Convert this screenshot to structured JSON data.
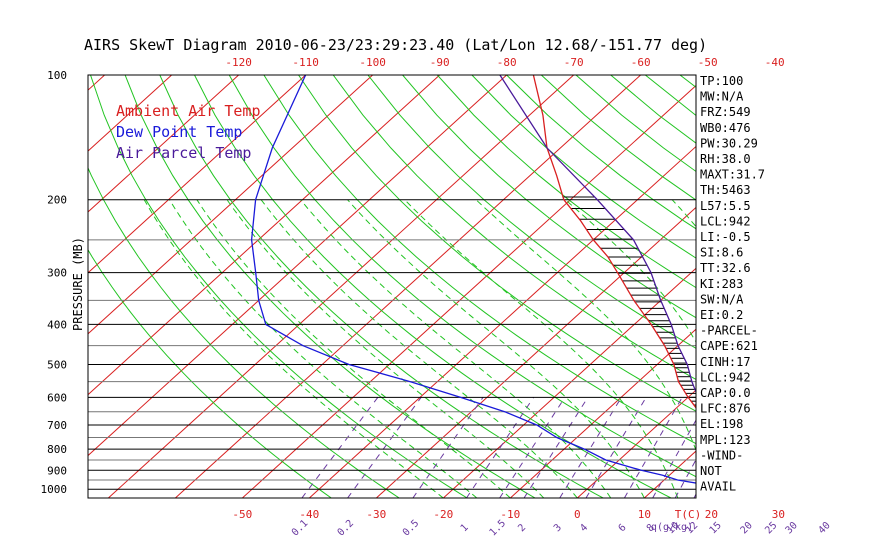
{
  "chart_data": {
    "type": "line",
    "title": "AIRS SkewT Diagram 2010-06-23/23:29:23.40 (Lat/Lon 12.68/-151.77 deg)",
    "ylabel": "PRESSURE (MB)",
    "xlabel_bottom_unit": "T(C)",
    "mixing_ratio_unit": "q(g/kg)",
    "bottom_ticks": [
      "-50",
      "-40",
      "-30",
      "-20",
      "-10",
      "0",
      "10",
      "20",
      "30"
    ],
    "bottom_tick_values": [
      -50,
      -40,
      -30,
      -20,
      -10,
      0,
      10,
      20,
      30
    ],
    "top_ticks": [
      "-120",
      "-110",
      "-100",
      "-90",
      "-80",
      "-70",
      "-60",
      "-50",
      "-40"
    ],
    "top_tick_values": [
      -120,
      -110,
      -100,
      -90,
      -80,
      -70,
      -60,
      -50,
      -40
    ],
    "pressure_ticks": [
      "100",
      "200",
      "300",
      "400",
      "500",
      "600",
      "700",
      "800",
      "900",
      "1000"
    ],
    "pressure_values": [
      100,
      200,
      300,
      400,
      500,
      600,
      700,
      800,
      900,
      1000
    ],
    "extra_isobars": [
      250,
      350,
      450,
      550,
      650,
      750,
      850,
      950
    ],
    "mixing_ratio_labels": [
      "0.1",
      "0.2",
      "0.5",
      "1",
      "1.5",
      "2",
      "3",
      "4",
      "6",
      "8",
      "10",
      "12",
      "15",
      "20",
      "25",
      "30",
      "40"
    ],
    "mixing_ratio_values": [
      0.1,
      0.2,
      0.5,
      1,
      1.5,
      2,
      3,
      4,
      6,
      8,
      10,
      12,
      15,
      20,
      25,
      30,
      40
    ],
    "legend": [
      {
        "label": "Ambient Air Temp",
        "color": "#d92020"
      },
      {
        "label": "Dew Point Temp",
        "color": "#1a1ad9"
      },
      {
        "label": "Air Parcel Temp",
        "color": "#4a1a9a"
      }
    ],
    "series": [
      {
        "name": "Ambient Air Temp",
        "color": "#d92020",
        "pressure": [
          1000,
          975,
          950,
          925,
          900,
          850,
          800,
          750,
          700,
          650,
          600,
          550,
          500,
          450,
          400,
          350,
          300,
          275,
          250,
          225,
          200,
          175,
          150,
          125,
          100
        ],
        "temp": [
          26,
          24,
          21,
          21,
          20,
          17,
          14,
          11,
          8,
          4,
          0,
          -4,
          -7.5,
          -12,
          -17.5,
          -24,
          -31,
          -35,
          -40,
          -45,
          -51,
          -56,
          -62,
          -68,
          -76
        ]
      },
      {
        "name": "Dew Point Temp",
        "color": "#1a1ad9",
        "pressure": [
          1000,
          975,
          950,
          925,
          900,
          850,
          800,
          750,
          700,
          650,
          600,
          550,
          500,
          450,
          400,
          350,
          300,
          250,
          200,
          150,
          100
        ],
        "temp": [
          21,
          17,
          12,
          9,
          5,
          -2,
          -7,
          -13,
          -18,
          -25,
          -34,
          -44,
          -56,
          -66,
          -75,
          -80,
          -85,
          -91,
          -97,
          -103,
          -110
        ]
      },
      {
        "name": "Air Parcel Temp",
        "color": "#4a1a9a",
        "pressure": [
          1000,
          975,
          950,
          925,
          900,
          850,
          800,
          750,
          700,
          650,
          600,
          550,
          500,
          450,
          400,
          350,
          300,
          250,
          200,
          150,
          100
        ],
        "temp": [
          26,
          24,
          22.5,
          21,
          20,
          17,
          14.5,
          11.5,
          9,
          5,
          1.5,
          -2,
          -5.5,
          -10,
          -14.5,
          -20,
          -26,
          -34,
          -46,
          -62,
          -81
        ]
      }
    ],
    "indices": [
      "TP:100",
      "MW:N/A",
      "FRZ:549",
      "WB0:476",
      "PW:30.29",
      "RH:38.0",
      "MAXT:31.7",
      "TH:5463",
      "L57:5.5",
      "LCL:942",
      "LI:-0.5",
      "SI:8.6",
      "TT:32.6",
      "KI:283",
      "SW:N/A",
      "EI:0.2",
      "-PARCEL-",
      "CAPE:621",
      "CINH:17",
      "LCL:942",
      "CAP:0.0",
      "LFC:876",
      "EL:198",
      "MPL:123",
      "-WIND-",
      "NOT",
      "AVAIL"
    ],
    "colors": {
      "isotherm": "#d92020",
      "dry_adiabat": "#22c422",
      "moist_adiabat": "#22c422",
      "mixing_ratio": "#6a3aa0",
      "isobar": "#000000",
      "top_ticks": "#d92020",
      "bottom_ticks": "#d92020"
    }
  }
}
